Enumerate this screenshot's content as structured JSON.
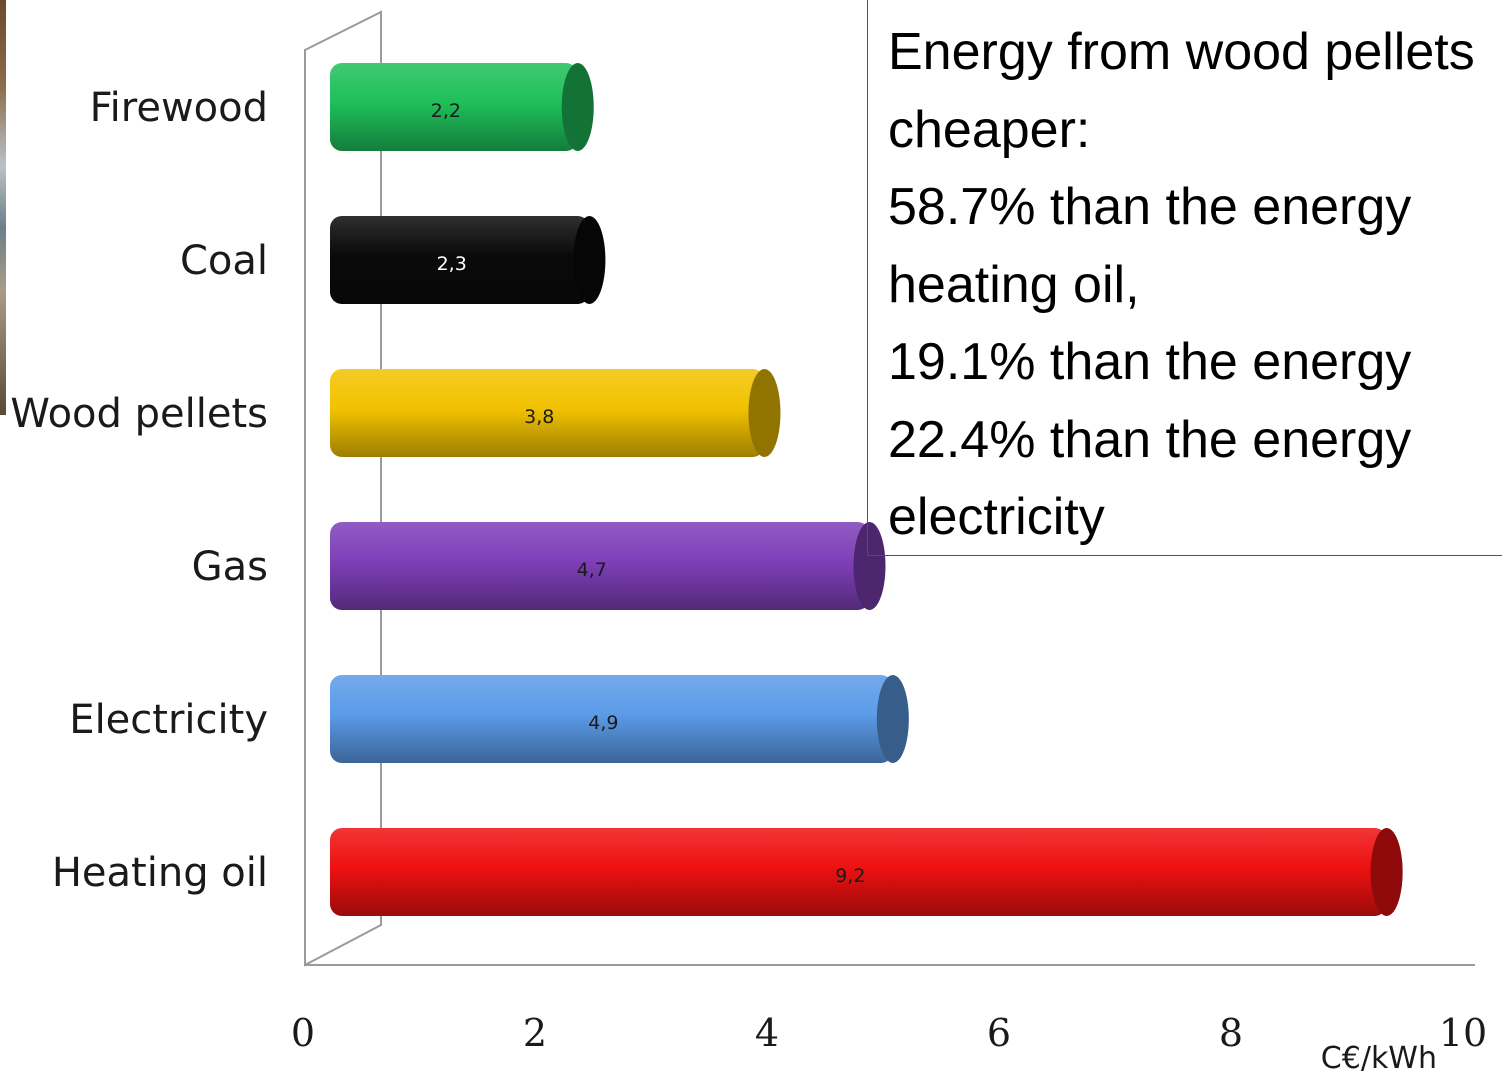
{
  "chart_data": {
    "type": "bar",
    "orientation": "horizontal",
    "categories": [
      "Firewood",
      "Coal",
      "Wood pellets",
      "Gas",
      "Electricity",
      "Heating oil"
    ],
    "values": [
      2.2,
      2.3,
      3.8,
      4.7,
      4.9,
      9.2
    ],
    "data_labels": [
      "2,2",
      "2,3",
      "3,8",
      "4,7",
      "4,9",
      "9,2"
    ],
    "colors": [
      "#1fbf5a",
      "#0a0a0a",
      "#f2c200",
      "#7f3fb8",
      "#5b9be8",
      "#ee1111"
    ],
    "xlabel": "C€/kWh",
    "ylabel": "",
    "title": "",
    "xlim": [
      0,
      10
    ],
    "x_ticks": [
      "0",
      "2",
      "4",
      "6",
      "8",
      "10"
    ],
    "grid": false,
    "legend": "none",
    "style": "3d-cylinder"
  },
  "note": {
    "lines": [
      "Energy from wood pellets",
      "cheaper:",
      "58.7%  than the energy",
      "heating oil,",
      "19.1%  than the energy",
      "22.4%  than the energy",
      "electricity"
    ],
    "border_color": "#c0202a"
  }
}
